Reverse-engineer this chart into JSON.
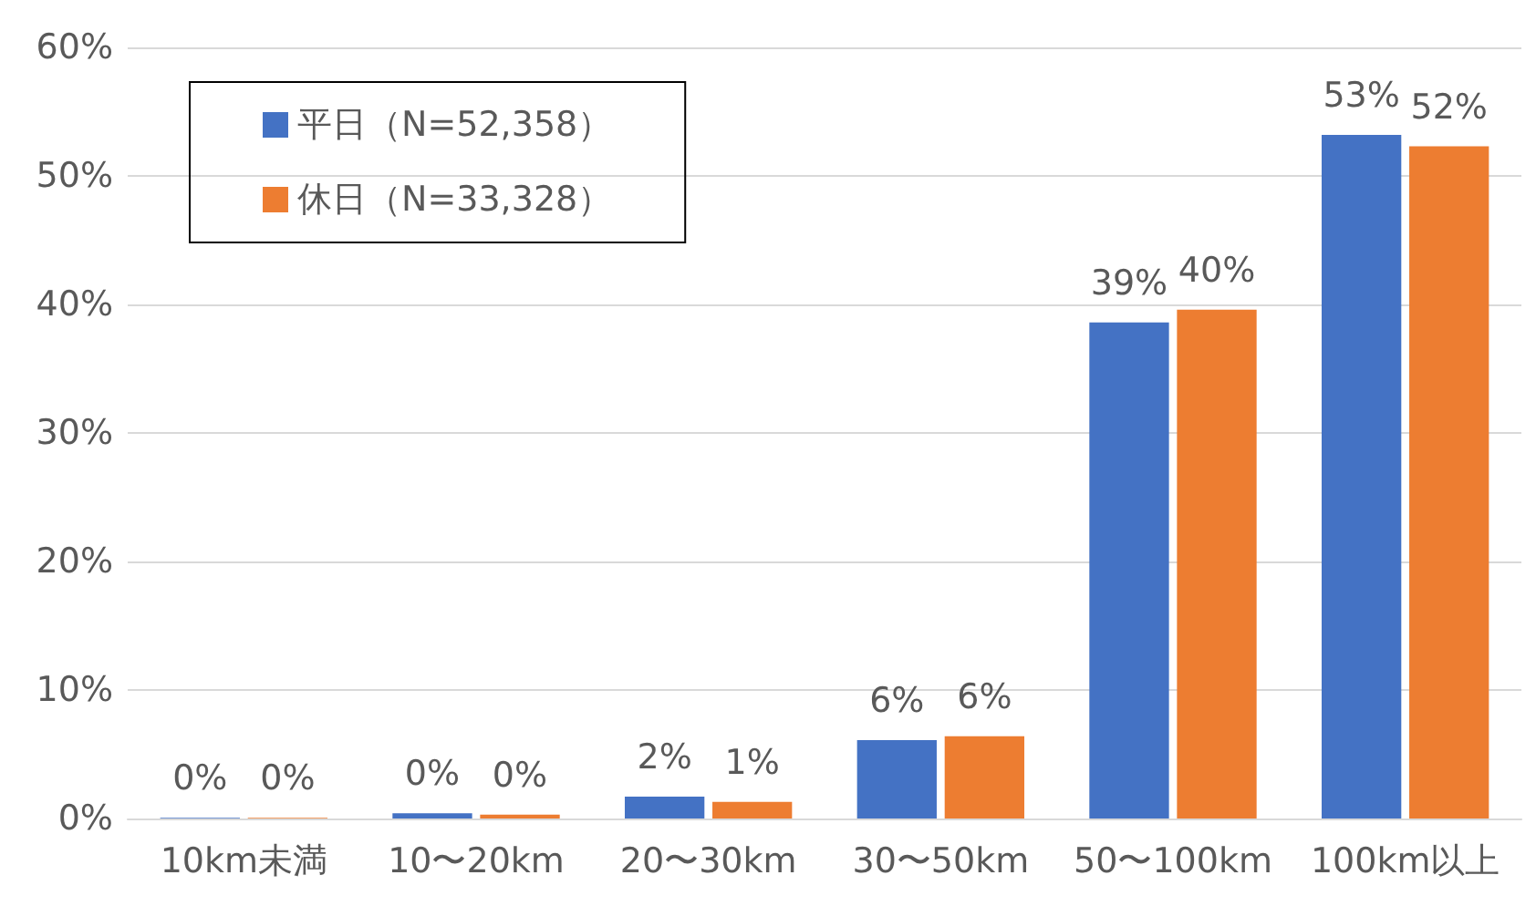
{
  "chart_data": {
    "type": "bar",
    "categories": [
      "10km未満",
      "10〜20km",
      "20〜30km",
      "30〜50km",
      "50〜100km",
      "100km以上"
    ],
    "series": [
      {
        "name": "平日（N=52,358）",
        "color": "#4472c4",
        "values": [
          0.05,
          0.4,
          1.7,
          6.1,
          38.6,
          53.2
        ],
        "value_labels": [
          "0%",
          "0%",
          "2%",
          "6%",
          "39%",
          "53%"
        ]
      },
      {
        "name": "休日（N=33,328）",
        "color": "#ed7d31",
        "values": [
          0.05,
          0.3,
          1.3,
          6.4,
          39.6,
          52.3
        ],
        "value_labels": [
          "0%",
          "0%",
          "1%",
          "6%",
          "40%",
          "52%"
        ]
      }
    ],
    "ylim": [
      0,
      60
    ],
    "yticks": [
      {
        "value": 0,
        "label": "0%"
      },
      {
        "value": 10,
        "label": "10%"
      },
      {
        "value": 20,
        "label": "20%"
      },
      {
        "value": 30,
        "label": "30%"
      },
      {
        "value": 40,
        "label": "40%"
      },
      {
        "value": 50,
        "label": "50%"
      },
      {
        "value": 60,
        "label": "60%"
      }
    ],
    "grid": "y",
    "legend": "top left"
  }
}
